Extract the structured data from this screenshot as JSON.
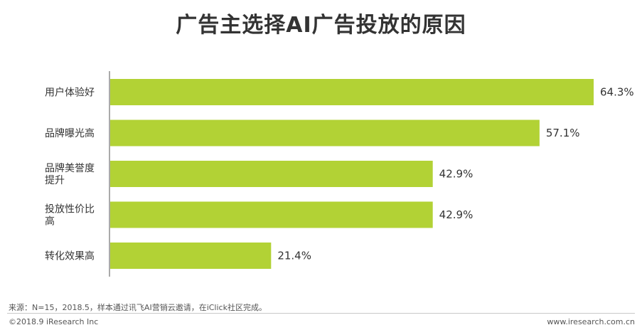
{
  "chart_data": {
    "type": "bar",
    "orientation": "horizontal",
    "title": "广告主选择AI广告投放的原因",
    "categories": [
      [
        "用户体验好"
      ],
      [
        "品牌曝光高"
      ],
      [
        "品牌美誉度",
        "提升"
      ],
      [
        "投放性价比",
        "高"
      ],
      [
        "转化效果高"
      ]
    ],
    "values": [
      64.3,
      57.1,
      42.9,
      42.9,
      21.4
    ],
    "value_labels": [
      "64.3%",
      "57.1%",
      "42.9%",
      "42.9%",
      "21.4%"
    ],
    "unit": "%",
    "xlim": [
      0,
      64.3
    ],
    "grid": false,
    "bar_color": "#b2d235"
  },
  "footer": {
    "source": "来源：N=15，2018.5，样本通过讯飞AI营销云邀请，在iClick社区完成。",
    "copyright": "©2018.9 iResearch Inc",
    "website": "www.iresearch.com.cn"
  }
}
